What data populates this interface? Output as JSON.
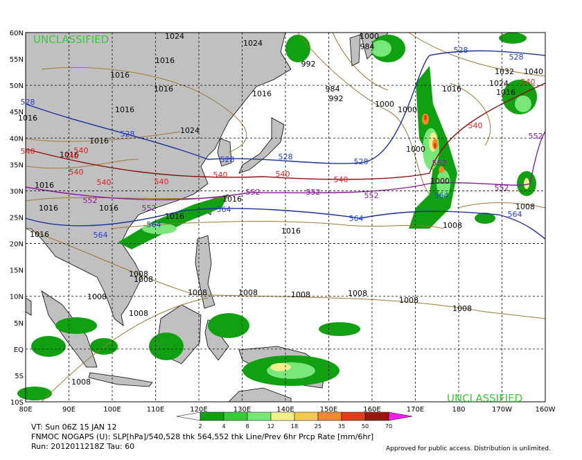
{
  "map": {
    "lat_labels": [
      "60N",
      "55N",
      "50N",
      "45N",
      "40N",
      "35N",
      "30N",
      "25N",
      "20N",
      "15N",
      "10N",
      "5N",
      "EQ",
      "5S",
      "10S"
    ],
    "lon_labels": [
      "80E",
      "90E",
      "100E",
      "110E",
      "120E",
      "130E",
      "140E",
      "150E",
      "160E",
      "170E",
      "180",
      "170W",
      "160W"
    ],
    "watermark": [
      "UNCLASSIFIED",
      "UNCLASSIFIED"
    ],
    "isobar_labels": [
      "1024",
      "1024",
      "1016",
      "1016",
      "1016",
      "1016",
      "1016",
      "1024",
      "1016",
      "1016",
      "1016",
      "992",
      "984",
      "992",
      "1000",
      "1000",
      "1000",
      "1000",
      "1016",
      "1024",
      "1032",
      "1040",
      "1016",
      "1016",
      "1016",
      "1016",
      "1016",
      "1016",
      "1016",
      "1016",
      "1008",
      "1008",
      "1008",
      "1008",
      "1008",
      "1008",
      "1008",
      "1008",
      "1008",
      "1008",
      "1008",
      "1008",
      "1008",
      "1000",
      "984"
    ],
    "thk_540_labels": [
      "540",
      "540",
      "540",
      "540",
      "540",
      "540",
      "540",
      "540",
      "540",
      "540",
      "540"
    ],
    "thk_528_labels": [
      "528",
      "528",
      "528",
      "528",
      "528",
      "528",
      "528"
    ],
    "thk_552_labels": [
      "552",
      "552",
      "552",
      "552",
      "552",
      "552",
      "552",
      "552"
    ],
    "thk_564_labels": [
      "564",
      "564",
      "564",
      "564",
      "564",
      "564"
    ]
  },
  "colorbar": {
    "ticks": [
      2,
      4,
      8,
      12,
      18,
      25,
      35,
      50,
      70
    ],
    "colors": [
      "#f8f8f8",
      "#11a011",
      "#3cc83c",
      "#78e678",
      "#f0f08c",
      "#f5c850",
      "#f08c28",
      "#e63c1e",
      "#a01414",
      "#f01ef0"
    ]
  },
  "footer": {
    "valid_time": "VT: Sun 06Z 15 JAN 12",
    "description": "FNMOC NOGAPS (U): SLP[hPa]/540,528 thk 564,552 thk Line/Prev 6hr Prcp Rate [mm/6hr]",
    "run": "Run: 2012011218Z Tau: 60",
    "disclaimer": "Approved for public access. Distribution is unlimited."
  }
}
